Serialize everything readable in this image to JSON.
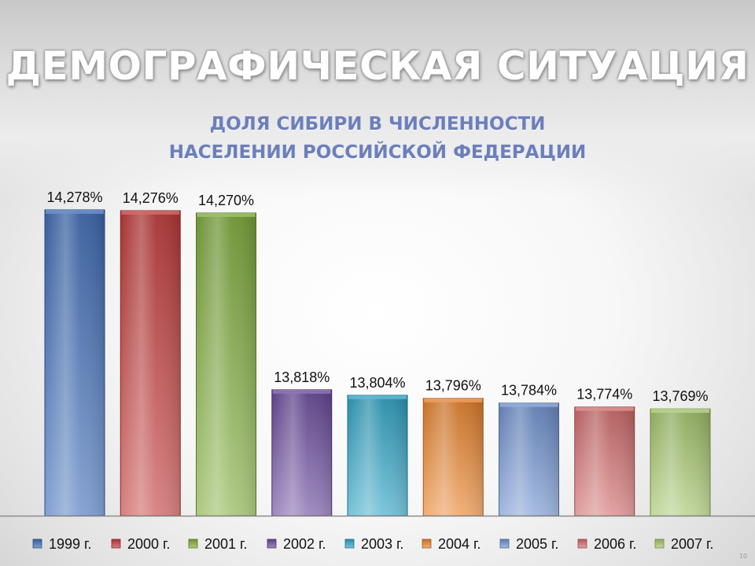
{
  "slide": {
    "title": "ДЕМОГРАФИЧЕСКАЯ СИТУАЦИЯ",
    "subtitle_line1": "ДОЛЯ СИБИРИ В ЧИСЛЕННОСТИ",
    "subtitle_line2": "НАСЕЛЕНИИ РОССИЙСКОЙ ФЕДЕРАЦИИ",
    "page_number": "10"
  },
  "chart_data": {
    "type": "bar",
    "title": "",
    "xlabel": "",
    "ylabel": "",
    "legend_position": "bottom",
    "grid": false,
    "ylim": [
      13.5,
      14.3
    ],
    "series": [
      {
        "name": "1999 г.",
        "values": [
          14.278
        ],
        "label": "14,278%",
        "color": "#3f6db8"
      },
      {
        "name": "2000 г.",
        "values": [
          14.276
        ],
        "label": "14,276%",
        "color": "#c23b3b"
      },
      {
        "name": "2001 г.",
        "values": [
          14.27
        ],
        "label": "14,270%",
        "color": "#7fac3c"
      },
      {
        "name": "2002 г.",
        "values": [
          13.818
        ],
        "label": "13,818%",
        "color": "#6a4a9c"
      },
      {
        "name": "2003 г.",
        "values": [
          13.804
        ],
        "label": "13,804%",
        "color": "#2ea3c4"
      },
      {
        "name": "2004 г.",
        "values": [
          13.796
        ],
        "label": "13,796%",
        "color": "#e9822b"
      },
      {
        "name": "2005 г.",
        "values": [
          13.784
        ],
        "label": "13,784%",
        "color": "#6f92cf"
      },
      {
        "name": "2006 г.",
        "values": [
          13.774
        ],
        "label": "13,774%",
        "color": "#d16b6b"
      },
      {
        "name": "2007 г.",
        "values": [
          13.769
        ],
        "label": "13,769%",
        "color": "#a3c56a"
      }
    ]
  }
}
